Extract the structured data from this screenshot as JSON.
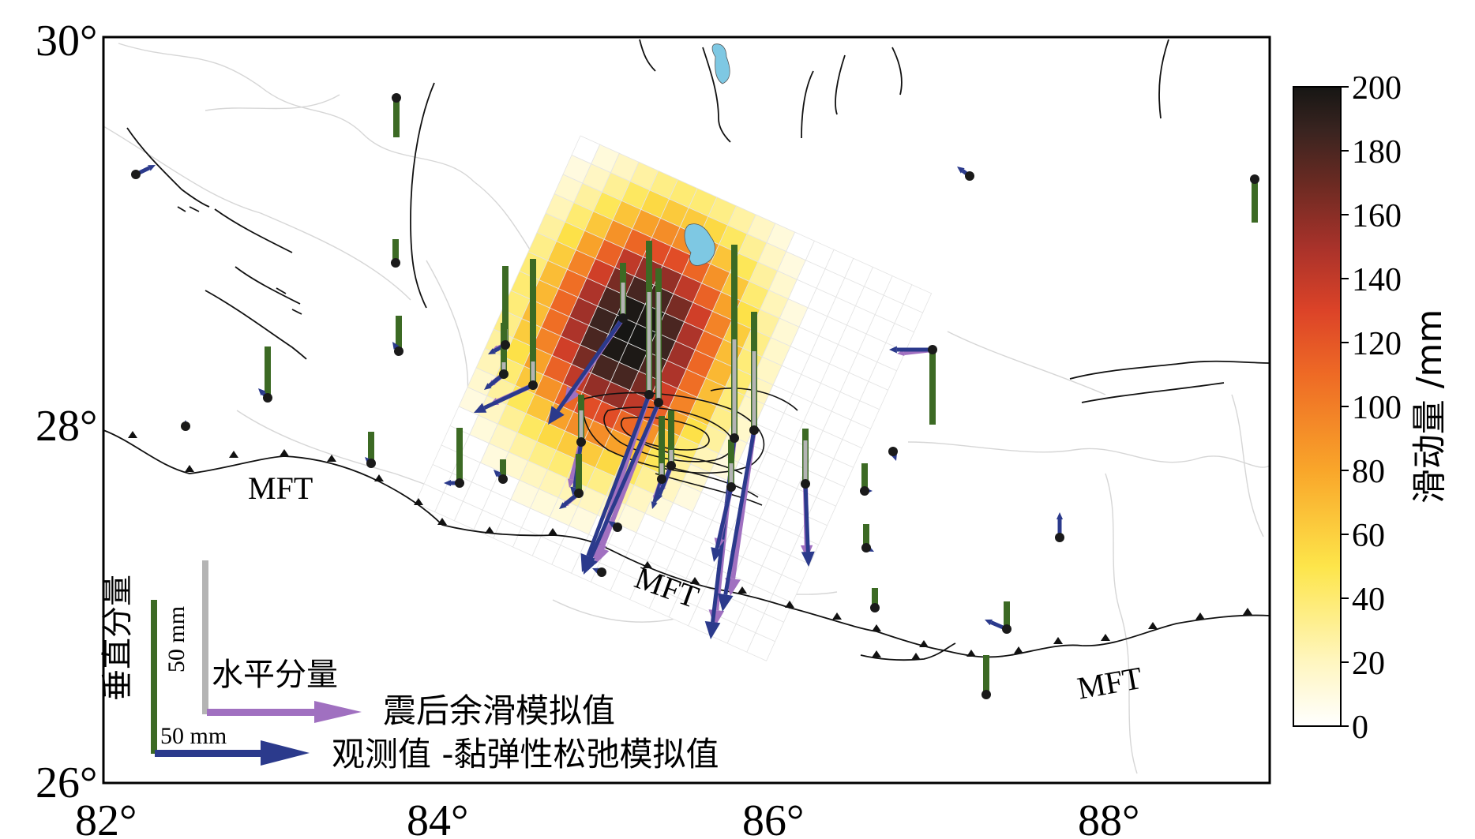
{
  "map": {
    "x_ticks": [
      "82°",
      "84°",
      "86°",
      "88°"
    ],
    "y_ticks": [
      "30°",
      "28°",
      "26°"
    ],
    "lon_range": [
      82,
      88.9
    ],
    "lat_range": [
      26,
      30
    ],
    "fault_labels": [
      "MFT",
      "MFT",
      "MFT"
    ]
  },
  "colorbar": {
    "title": "滑动量 /mm",
    "ticks": [
      "200",
      "180",
      "160",
      "140",
      "120",
      "100",
      "80",
      "60",
      "40",
      "20",
      "0"
    ],
    "range": [
      0,
      200
    ],
    "colormap": [
      "#ffffff",
      "#fff2b0",
      "#fde34a",
      "#fbbf2a",
      "#f58b22",
      "#e8552a",
      "#c9372a",
      "#8e2a22",
      "#4e2420",
      "#1a1a18"
    ]
  },
  "legend": {
    "vertical_label": "垂直分量",
    "horizontal_label": "水平分量",
    "scale_vertical": "50 mm",
    "scale_horizontal": "50 mm",
    "model_label": "震后余滑模拟值",
    "obs_label": "观测值 -黏弹性松弛模拟值",
    "colors": {
      "model": "#a070c0",
      "obs": "#2b3a8c",
      "vertical_obs": "#3c6a24",
      "vertical_model": "#b4b4b4"
    }
  }
}
